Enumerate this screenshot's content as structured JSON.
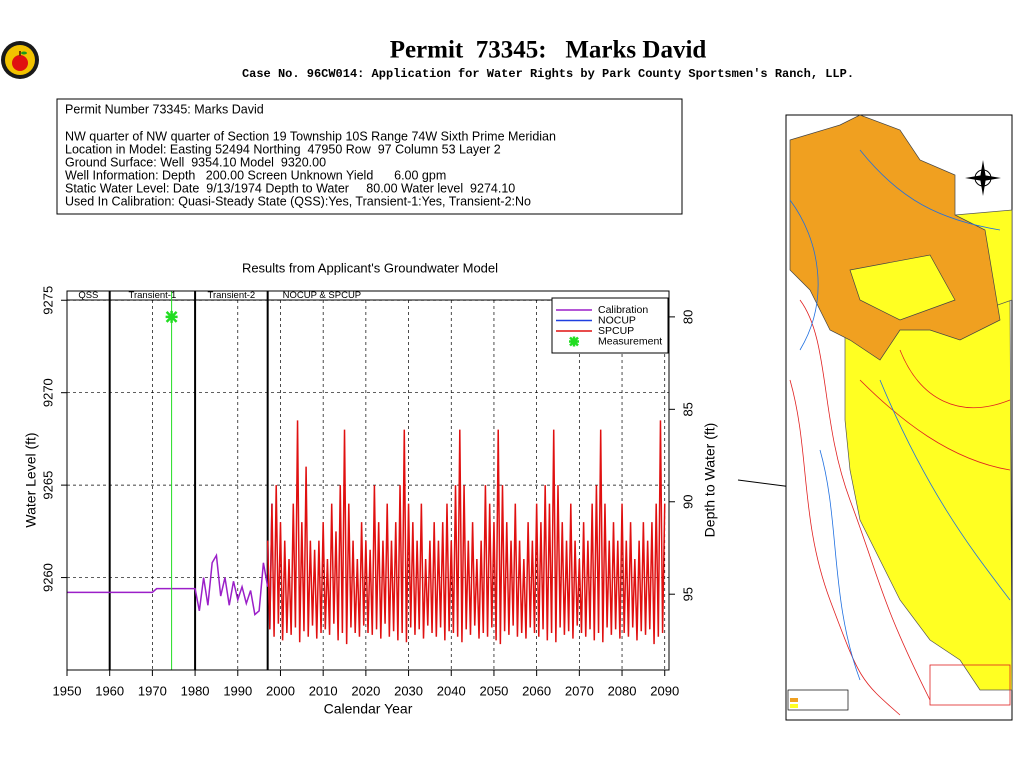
{
  "header": {
    "title": "Permit  73345:   Marks David",
    "subtitle": "Case No. 96CW014: Application for Water Rights by Park County Sportsmen's Ranch, LLP."
  },
  "info": {
    "lines": [
      "Permit Number 73345: Marks David",
      "NW quarter of NW quarter of Section 19 Township 10S Range 74W Sixth Prime Meridian",
      "Location in Model: Easting 52494 Northing  47950 Row  97 Column 53 Layer 2",
      "Ground Surface: Well  9354.10 Model  9320.00",
      "Well Information: Depth   200.00 Screen Unknown Yield      6.00 gpm",
      "Static Water Level: Date  9/13/1974 Depth to Water     80.00 Water level  9274.10",
      "Used In Calibration: Quasi-Steady State (QSS):Yes, Transient-1:Yes, Transient-2:No"
    ]
  },
  "chart_data": {
    "type": "line",
    "title": "Results from Applicant's Groundwater Model",
    "x_label": "Calendar Year",
    "y_label": "Water Level (ft)",
    "y2_label": "Depth to Water (ft)",
    "xlim": [
      1950,
      2091
    ],
    "xticks": [
      1950,
      1960,
      1970,
      1980,
      1990,
      2000,
      2010,
      2020,
      2030,
      2040,
      2050,
      2060,
      2070,
      2080,
      2090
    ],
    "ylim": [
      9255,
      9275.5
    ],
    "yticks": [
      9260,
      9265,
      9270,
      9275
    ],
    "y2lim": [
      99.1,
      78.6
    ],
    "y2ticks": [
      80,
      85,
      90,
      95
    ],
    "grid": true,
    "legend": "upper right",
    "period_labels": [
      "QSS",
      "Transient-1",
      "Transient-2",
      "NOCUP & SPCUP"
    ],
    "period_bounds": [
      1960,
      1980,
      1997
    ],
    "series": [
      {
        "name": "Calibration",
        "color": "#9b1fc8",
        "x": [
          1950,
          1970,
          1971,
          1980,
          1981,
          1982,
          1983,
          1984,
          1985,
          1986,
          1987,
          1988,
          1989,
          1990,
          1991,
          1992,
          1993,
          1994,
          1995,
          1996,
          1997
        ],
        "values": [
          9259.2,
          9259.2,
          9259.4,
          9259.4,
          9258.2,
          9260,
          9258.5,
          9260.8,
          9261.2,
          9259,
          9260,
          9258.5,
          9259.8,
          9258.8,
          9259.5,
          9258.6,
          9259.3,
          9258,
          9258.2,
          9260.8,
          9259.5
        ]
      },
      {
        "name": "NOCUP",
        "color": "#1f3fe0",
        "x": [
          1997,
          1997.5,
          1998
        ],
        "values": [
          9262,
          9257.2,
          9264
        ]
      },
      {
        "name": "SPCUP",
        "color": "#e01010",
        "x": [
          1997,
          1997.5,
          1998,
          1998.5,
          1999,
          1999.5,
          2000,
          2000.5,
          2001,
          2001.5,
          2002,
          2002.5,
          2003,
          2003.5,
          2004,
          2004.5,
          2005,
          2005.5,
          2006,
          2006.5,
          2007,
          2007.5,
          2008,
          2008.5,
          2009,
          2009.5,
          2010,
          2010.5,
          2011,
          2011.5,
          2012,
          2012.5,
          2013,
          2013.5,
          2014,
          2014.5,
          2015,
          2015.5,
          2016,
          2016.5,
          2017,
          2017.5,
          2018,
          2018.5,
          2019,
          2019.5,
          2020,
          2020.5,
          2021,
          2021.5,
          2022,
          2022.5,
          2023,
          2023.5,
          2024,
          2024.5,
          2025,
          2025.5,
          2026,
          2026.5,
          2027,
          2027.5,
          2028,
          2028.5,
          2029,
          2029.5,
          2030,
          2030.5,
          2031,
          2031.5,
          2032,
          2032.5,
          2033,
          2033.5,
          2034,
          2034.5,
          2035,
          2035.5,
          2036,
          2036.5,
          2037,
          2037.5,
          2038,
          2038.5,
          2039,
          2039.5,
          2040,
          2040.5,
          2041,
          2041.5,
          2042,
          2042.5,
          2043,
          2043.5,
          2044,
          2044.5,
          2045,
          2045.5,
          2046,
          2046.5,
          2047,
          2047.5,
          2048,
          2048.5,
          2049,
          2049.5,
          2050,
          2050.5,
          2051,
          2051.5,
          2052,
          2052.5,
          2053,
          2053.5,
          2054,
          2054.5,
          2055,
          2055.5,
          2056,
          2056.5,
          2057,
          2057.5,
          2058,
          2058.5,
          2059,
          2059.5,
          2060,
          2060.5,
          2061,
          2061.5,
          2062,
          2062.5,
          2063,
          2063.5,
          2064,
          2064.5,
          2065,
          2065.5,
          2066,
          2066.5,
          2067,
          2067.5,
          2068,
          2068.5,
          2069,
          2069.5,
          2070,
          2070.5,
          2071,
          2071.5,
          2072,
          2072.5,
          2073,
          2073.5,
          2074,
          2074.5,
          2075,
          2075.5,
          2076,
          2076.5,
          2077,
          2077.5,
          2078,
          2078.5,
          2079,
          2079.5,
          2080,
          2080.5,
          2081,
          2081.5,
          2082,
          2082.5,
          2083,
          2083.5,
          2084,
          2084.5,
          2085,
          2085.5,
          2086,
          2086.5,
          2087,
          2087.5,
          2088,
          2088.5,
          2089,
          2089.5,
          2090
        ],
        "values": [
          9262,
          9257.2,
          9264,
          9256.8,
          9265,
          9257.5,
          9263,
          9256.6,
          9262,
          9257,
          9261,
          9256.9,
          9264,
          9257.3,
          9268.5,
          9256.5,
          9263,
          9257.1,
          9266,
          9256.8,
          9262,
          9257.4,
          9261.5,
          9256.7,
          9262,
          9257,
          9263,
          9257.2,
          9261,
          9256.9,
          9264,
          9257.5,
          9262.5,
          9256.6,
          9265,
          9257,
          9268,
          9256.4,
          9264,
          9257.3,
          9262,
          9257,
          9261,
          9256.8,
          9263,
          9257.4,
          9262,
          9257,
          9261.5,
          9256.9,
          9265,
          9257.2,
          9263,
          9256.7,
          9262,
          9257.5,
          9264,
          9256.8,
          9262,
          9257.1,
          9263,
          9256.6,
          9265,
          9257,
          9268,
          9256.5,
          9264,
          9257.3,
          9263,
          9256.9,
          9262,
          9257.2,
          9264,
          9256.7,
          9261,
          9257.4,
          9262,
          9257,
          9263,
          9256.8,
          9262,
          9257.3,
          9263,
          9256.6,
          9264,
          9257.1,
          9262,
          9257,
          9265,
          9256.8,
          9268,
          9256.5,
          9265,
          9257.2,
          9262,
          9256.9,
          9263,
          9257.4,
          9261,
          9256.7,
          9262,
          9257,
          9265,
          9256.8,
          9264,
          9257.3,
          9263,
          9256.6,
          9268,
          9256.4,
          9265,
          9257.1,
          9263,
          9256.9,
          9262,
          9257.4,
          9264,
          9256.8,
          9262,
          9257,
          9261,
          9256.7,
          9263,
          9257.3,
          9262,
          9257,
          9264,
          9256.8,
          9263,
          9257.2,
          9265,
          9256.6,
          9264,
          9257,
          9268,
          9256.5,
          9265,
          9257.3,
          9263,
          9256.9,
          9262,
          9257.1,
          9264,
          9256.7,
          9262,
          9257.4,
          9261,
          9257,
          9263,
          9256.8,
          9262,
          9257.2,
          9264,
          9256.6,
          9265,
          9257,
          9268,
          9256.5,
          9264,
          9257.3,
          9262,
          9256.9,
          9263,
          9257.2,
          9262,
          9256.7,
          9264,
          9257,
          9262,
          9256.8,
          9263,
          9257.3,
          9261,
          9256.6,
          9262,
          9257.1,
          9263,
          9256.9,
          9262,
          9257.2,
          9263,
          9256.4,
          9264,
          9256.8,
          9268.5,
          9257,
          9264
        ]
      },
      {
        "name": "Measurement",
        "color": "#22dd22",
        "x": [
          1974.5
        ],
        "values": [
          9274.1
        ]
      }
    ]
  }
}
